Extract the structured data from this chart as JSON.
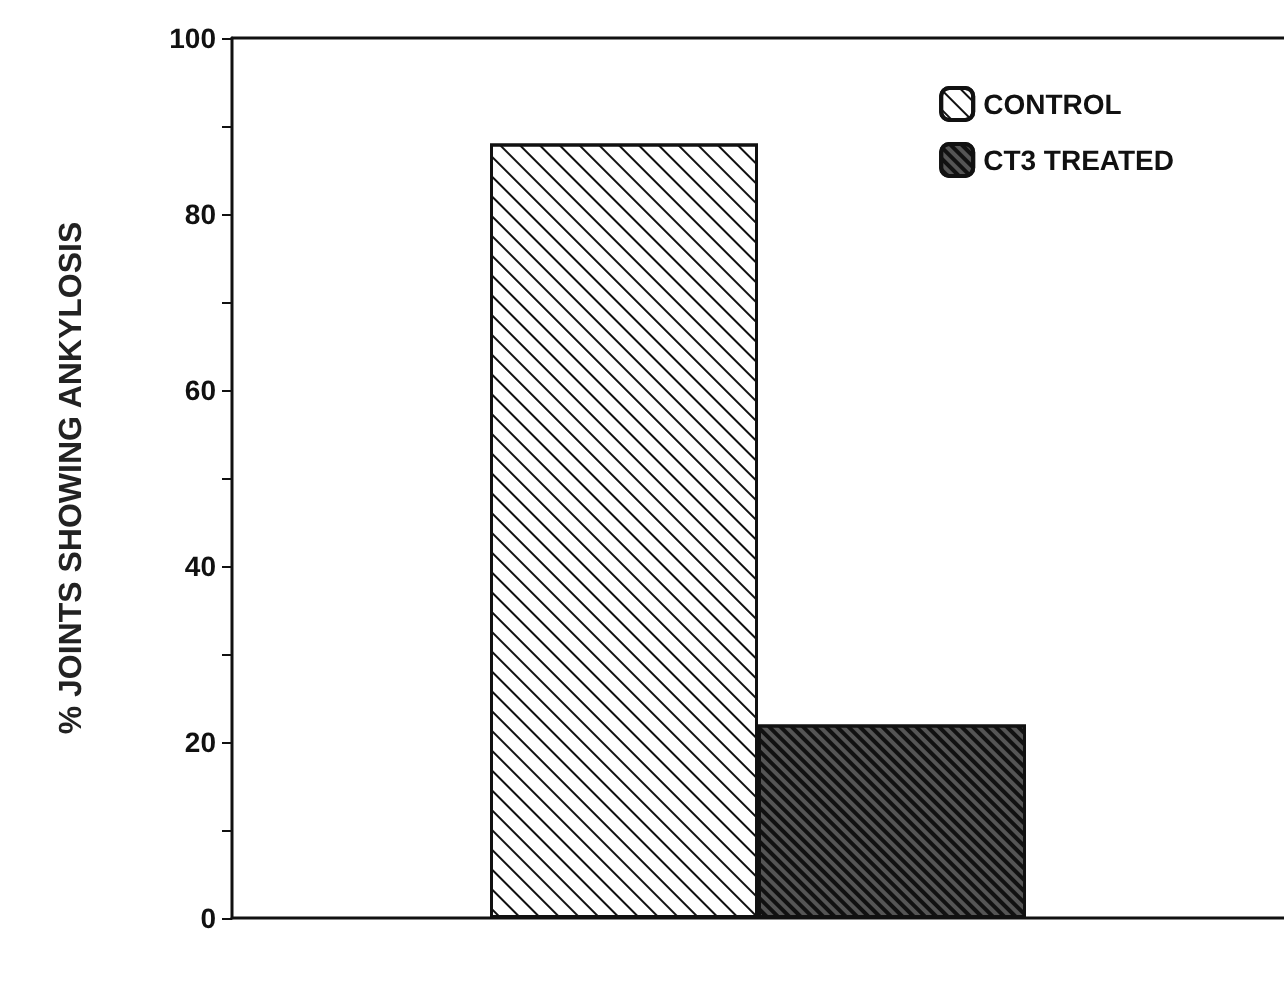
{
  "chart_data": {
    "type": "bar",
    "ylabel": "% JOINTS SHOWING ANKYLOSIS",
    "categories": [
      null
    ],
    "series": [
      {
        "name": "CONTROL",
        "color": "#ffffff",
        "values": [
          88
        ]
      },
      {
        "name": "CT3 TREATED",
        "color": "#555555",
        "values": [
          22
        ]
      }
    ],
    "ylim": [
      0,
      100
    ],
    "yticks": [
      0,
      {
        "value": 10,
        "label": null
      },
      20,
      {
        "value": 30,
        "label": null
      },
      40,
      {
        "value": 50,
        "label": null
      },
      60,
      {
        "value": 70,
        "label": null
      },
      80,
      {
        "value": 90,
        "label": null
      },
      100
    ],
    "grid": false,
    "legend": "top right"
  }
}
